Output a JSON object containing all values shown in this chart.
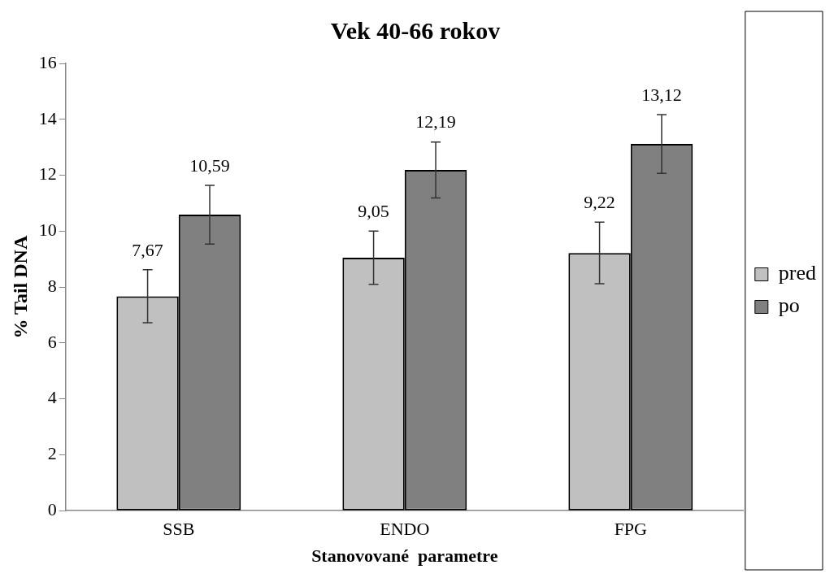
{
  "chart_data": {
    "type": "bar",
    "title": "Vek 40-66 rokov",
    "xlabel": "Stanovované  parametre",
    "ylabel": "% Tail DNA",
    "categories": [
      "SSB",
      "ENDO",
      "FPG"
    ],
    "series": [
      {
        "name": "pred",
        "color": "#c0c0c0",
        "values": [
          7.67,
          9.05,
          9.22
        ],
        "errors": [
          0.95,
          0.95,
          1.1
        ],
        "value_labels": [
          "7,67",
          "9,05",
          "9,22"
        ]
      },
      {
        "name": "po",
        "color": "#808080",
        "values": [
          10.59,
          12.19,
          13.12
        ],
        "errors": [
          1.05,
          1.0,
          1.05
        ],
        "value_labels": [
          "10,59",
          "12,19",
          "13,12"
        ]
      }
    ],
    "ylim": [
      0,
      16
    ],
    "yticks": [
      0,
      2,
      4,
      6,
      8,
      10,
      12,
      14,
      16
    ],
    "grid": false,
    "legend": "right"
  }
}
